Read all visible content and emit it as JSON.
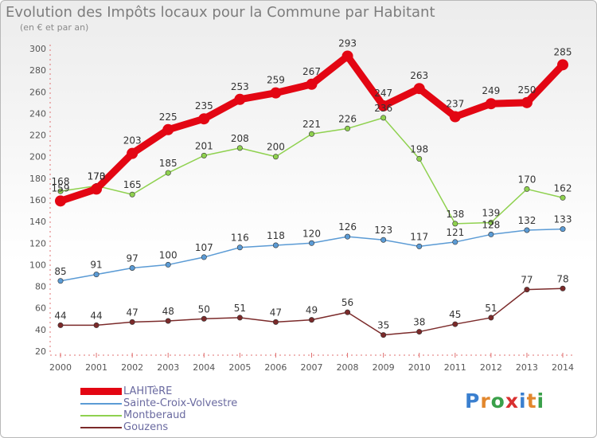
{
  "title": "Evolution des Impôts locaux pour la Commune par Habitant",
  "subtitle": "(en € et par an)",
  "logo": {
    "text": "Proxiti",
    "letters": [
      "P",
      "r",
      "o",
      "x",
      "i",
      "t",
      "i"
    ],
    "colors": [
      "#3a7fcf",
      "#e2872d",
      "#3aa04a",
      "#d93030",
      "#3a7fcf",
      "#e2872d",
      "#3aa04a"
    ]
  },
  "chart_data": {
    "type": "line",
    "title": "Evolution des Impôts locaux pour la Commune par Habitant",
    "subtitle": "(en € et par an)",
    "categories": [
      "2000",
      "2001",
      "2002",
      "2003",
      "2004",
      "2005",
      "2006",
      "2007",
      "2008",
      "2009",
      "2010",
      "2011",
      "2012",
      "2013",
      "2014"
    ],
    "yticks": [
      20,
      40,
      60,
      80,
      100,
      120,
      140,
      160,
      180,
      200,
      220,
      240,
      260,
      280,
      300
    ],
    "ylim": [
      20,
      300
    ],
    "grid": false,
    "legend_position": "bottom-left",
    "series": [
      {
        "name": "LAHITèRE",
        "color": "#e30613",
        "values": [
          159,
          170,
          203,
          225,
          235,
          253,
          259,
          267,
          293,
          247,
          263,
          237,
          249,
          250,
          285
        ]
      },
      {
        "name": "Sainte-Croix-Volvestre",
        "color": "#5b9bd5",
        "values": [
          85,
          91,
          97,
          100,
          107,
          116,
          118,
          120,
          126,
          123,
          117,
          121,
          128,
          132,
          133
        ]
      },
      {
        "name": "Montberaud",
        "color": "#8fd14f",
        "values": [
          168,
          173,
          165,
          185,
          201,
          208,
          200,
          221,
          226,
          236,
          198,
          138,
          139,
          170,
          162
        ]
      },
      {
        "name": "Gouzens",
        "color": "#7b2a2a",
        "values": [
          44,
          44,
          47,
          48,
          50,
          51,
          47,
          49,
          56,
          35,
          38,
          45,
          51,
          77,
          78
        ]
      }
    ],
    "data_labels": [
      [
        "159",
        "170",
        "203",
        "225",
        "235",
        "253",
        "259",
        "267",
        "293",
        "247",
        "263",
        "237",
        "249",
        "250",
        "285"
      ],
      [
        "85",
        "91",
        "97",
        "100",
        "107",
        "116",
        "118",
        "120",
        "126",
        "123",
        "117",
        "121",
        "128",
        "132",
        "133"
      ],
      [
        "168",
        "173",
        "165",
        "185",
        "201",
        "208",
        "200",
        "221",
        "226",
        "236",
        "198",
        "138",
        "139",
        "170",
        "162"
      ],
      [
        "44",
        "44",
        "47",
        "48",
        "50",
        "51",
        "47",
        "49",
        "56",
        "35",
        "38",
        "45",
        "51",
        "77",
        "78"
      ]
    ]
  }
}
